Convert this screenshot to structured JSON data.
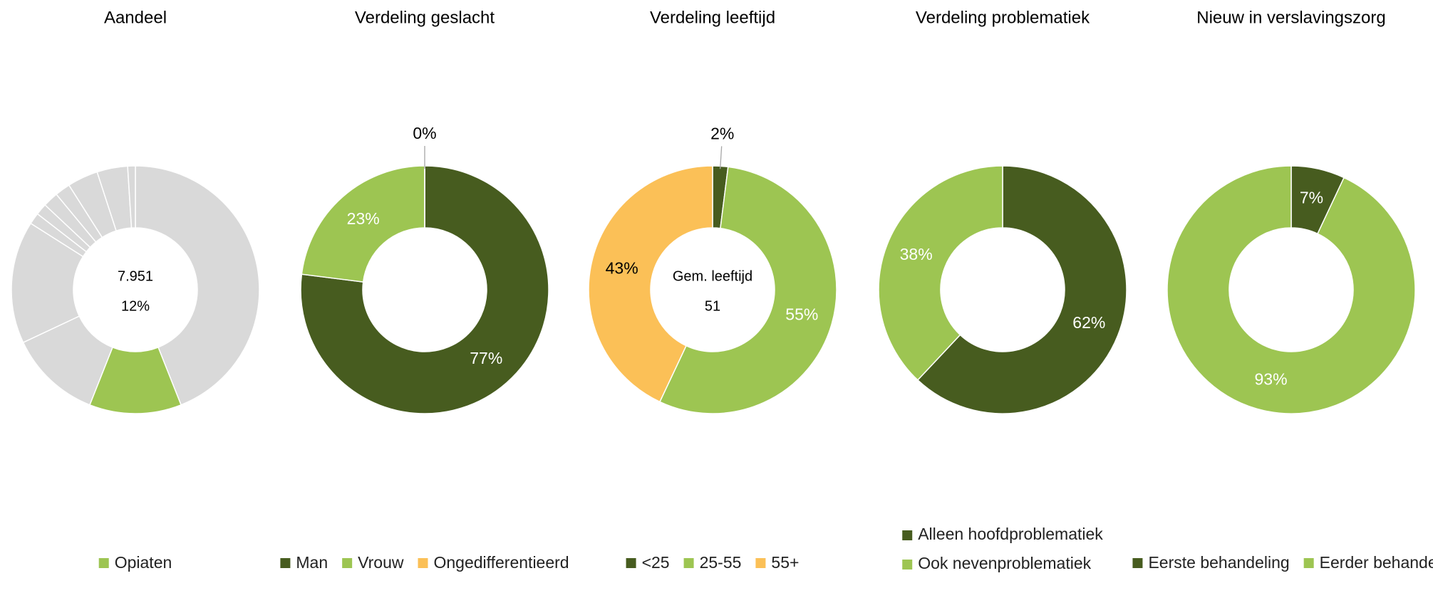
{
  "chart_data": [
    {
      "type": "donut",
      "title": "Aandeel",
      "categories": [
        null,
        "Opiaten",
        null,
        null,
        null,
        null,
        null,
        null,
        null,
        null,
        null
      ],
      "values": [
        44,
        12,
        12,
        16,
        1.5,
        1.5,
        2,
        2,
        4,
        4,
        1
      ],
      "colors": [
        "#d9d9d9",
        "#9dc552",
        "#d9d9d9",
        "#d9d9d9",
        "#d9d9d9",
        "#d9d9d9",
        "#d9d9d9",
        "#d9d9d9",
        "#d9d9d9",
        "#d9d9d9",
        "#d9d9d9"
      ],
      "center_text": [
        "7.951",
        "12%"
      ]
    },
    {
      "type": "donut",
      "title": "Verdeling geslacht",
      "categories": [
        "Man",
        "Vrouw",
        "Ongedifferentieerd"
      ],
      "values": [
        77,
        23,
        0
      ],
      "value_labels": [
        "77%",
        "23%",
        "0%"
      ],
      "colors": [
        "#475c1f",
        "#9dc552",
        "#fbc057"
      ]
    },
    {
      "type": "donut",
      "title": "Verdeling leeftijd",
      "categories": [
        "<25",
        "25-55",
        "55+"
      ],
      "values": [
        2,
        55,
        43
      ],
      "value_labels": [
        "2%",
        "55%",
        "43%"
      ],
      "colors": [
        "#475c1f",
        "#9dc552",
        "#fbc057"
      ],
      "center_text": [
        "Gem. leeftijd",
        "51"
      ]
    },
    {
      "type": "donut",
      "title": "Verdeling problematiek",
      "categories": [
        "Alleen hoofdproblematiek",
        "Ook nevenproblematiek"
      ],
      "values": [
        62,
        38
      ],
      "value_labels": [
        "62%",
        "38%"
      ],
      "colors": [
        "#475c1f",
        "#9dc552"
      ]
    },
    {
      "type": "donut",
      "title": "Nieuw in verslavingszorg",
      "categories": [
        "Eerste behandeling",
        "Eerder behandeld"
      ],
      "values": [
        7,
        93
      ],
      "value_labels": [
        "7%",
        "93%"
      ],
      "colors": [
        "#475c1f",
        "#9dc552"
      ]
    }
  ]
}
